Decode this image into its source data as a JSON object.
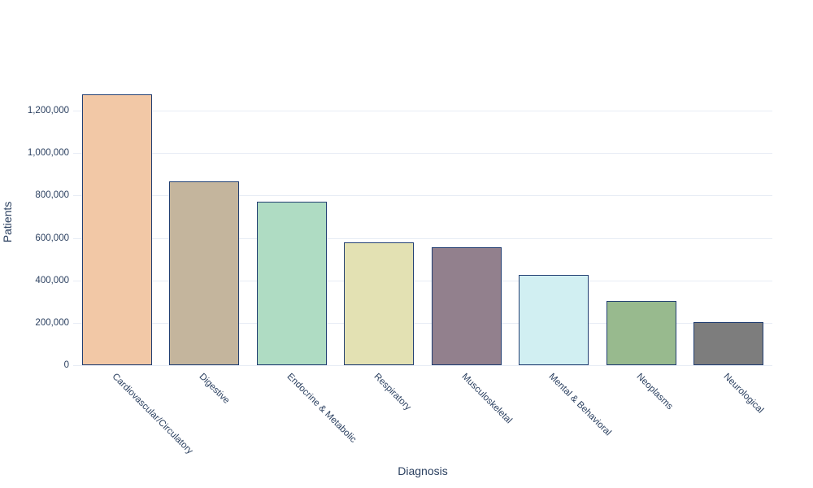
{
  "chart_data": {
    "type": "bar",
    "title": "",
    "xlabel": "Diagnosis",
    "ylabel": "Patients",
    "categories": [
      "Cardiovascular/Circulatory",
      "Digestive",
      "Endocrine & Metabolic",
      "Respiratory",
      "Musculoskeletal",
      "Mental & Behavioral",
      "Neoplasms",
      "Neurological"
    ],
    "values": [
      1278000,
      867000,
      769000,
      577000,
      556000,
      424000,
      302000,
      203000
    ],
    "bar_colors": [
      "#f2c8a6",
      "#c4b59d",
      "#afdcc3",
      "#e3e1b3",
      "#92808d",
      "#d1eff2",
      "#98ba8e",
      "#7d7d7d"
    ],
    "bar_border_color": "#223f72",
    "grid_color": "#e7ecf5",
    "axis_text_color": "#2a3f5f",
    "background_color": "#ffffff",
    "yticks": [
      0,
      200000,
      400000,
      600000,
      800000,
      1000000,
      1200000
    ],
    "ytick_labels": [
      "0",
      "200,000",
      "400,000",
      "600,000",
      "800,000",
      "1,000,000",
      "1,200,000"
    ],
    "ylim": [
      0,
      1345000
    ],
    "grid": true,
    "legend": "none",
    "x_tick_angle": 45,
    "bar_gap_fraction": 0.2
  }
}
